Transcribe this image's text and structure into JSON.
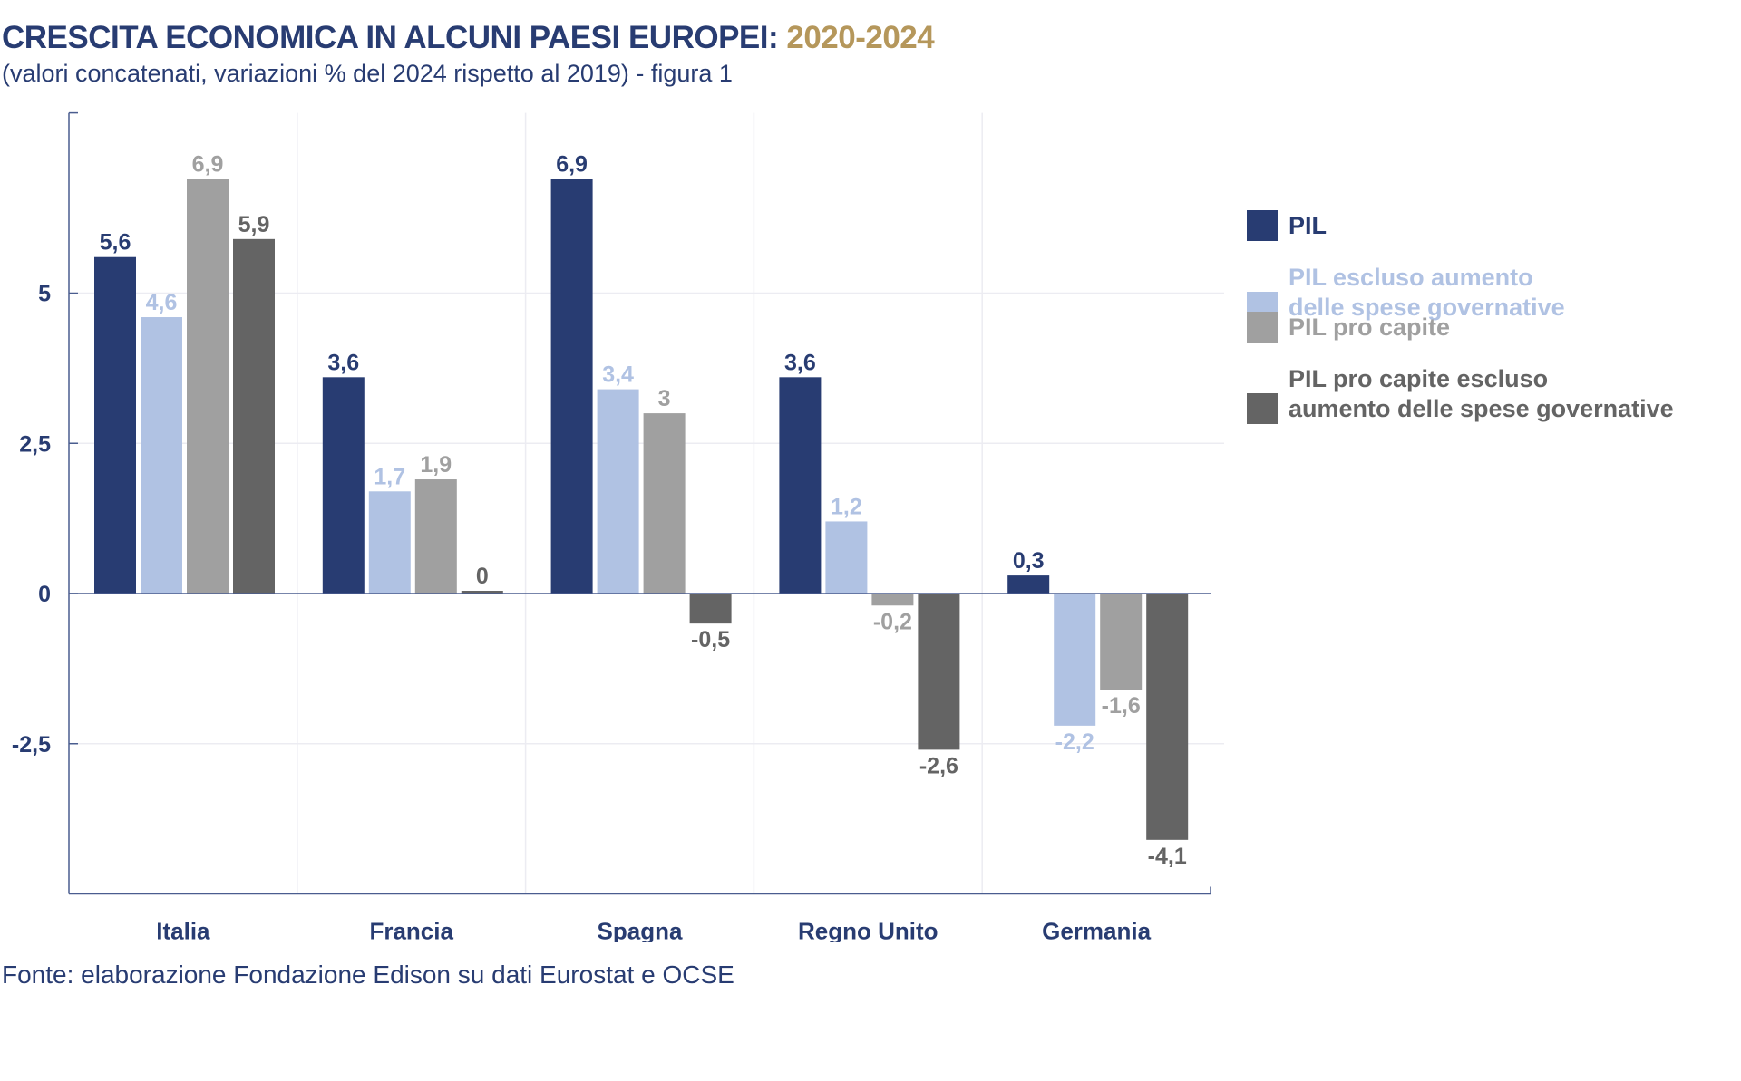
{
  "header": {
    "title_main": "CRESCITA ECONOMICA IN ALCUNI PAESI EUROPEI: ",
    "title_years": "2020-2024",
    "subtitle": "(valori concatenati, variazioni % del 2024 rispetto al 2019) - figura 1"
  },
  "source": "Fonte: elaborazione Fondazione Edison su dati Eurostat e OCSE",
  "colors": {
    "title": "#283c72",
    "years": "#b5975b",
    "axis": "#4a5d8f",
    "grid": "#ececf2"
  },
  "legend": [
    {
      "label_lines": [
        "PIL"
      ],
      "color": "#283c72"
    },
    {
      "label_lines": [
        "PIL escluso aumento",
        "delle spese governative"
      ],
      "color": "#b0c2e3"
    },
    {
      "label_lines": [
        "PIL pro capite"
      ],
      "color": "#a0a0a0"
    },
    {
      "label_lines": [
        "PIL pro capite escluso",
        "aumento delle spese governative"
      ],
      "color": "#646464"
    }
  ],
  "chart_data": {
    "type": "bar",
    "title": "CRESCITA ECONOMICA IN ALCUNI PAESI EUROPEI: 2020-2024",
    "subtitle": "(valori concatenati, variazioni % del 2024 rispetto al 2019) - figura 1",
    "xlabel": "",
    "ylabel": "",
    "categories": [
      "Italia",
      "Francia",
      "Spagna",
      "Regno Unito",
      "Germania"
    ],
    "series": [
      {
        "name": "PIL",
        "color": "#283c72",
        "values": [
          5.6,
          3.6,
          6.9,
          3.6,
          0.3
        ],
        "labels": [
          "5,6",
          "3,6",
          "6,9",
          "3,6",
          "0,3"
        ],
        "label_color": "#283c72"
      },
      {
        "name": "PIL escluso aumento delle spese governative",
        "color": "#b0c2e3",
        "values": [
          4.6,
          1.7,
          3.4,
          1.2,
          -2.2
        ],
        "labels": [
          "4,6",
          "1,7",
          "3,4",
          "1,2",
          "-2,2"
        ],
        "label_color": "#b0c2e3"
      },
      {
        "name": "PIL pro capite",
        "color": "#a0a0a0",
        "values": [
          6.9,
          1.9,
          3.0,
          -0.2,
          -1.6
        ],
        "labels": [
          "6,9",
          "1,9",
          "3",
          "-0,2",
          "-1,6"
        ],
        "label_color": "#a0a0a0"
      },
      {
        "name": "PIL pro capite escluso aumento delle spese governative",
        "color": "#646464",
        "values": [
          5.9,
          0.0,
          -0.5,
          -2.6,
          -4.1
        ],
        "labels": [
          "5,9",
          "0",
          "-0,5",
          "-2,6",
          "-4,1"
        ],
        "label_color": "#646464"
      }
    ],
    "ylim": [
      -5,
      8
    ],
    "yticks": [
      -2.5,
      0,
      2.5,
      5
    ],
    "ytick_labels": [
      "-2,5",
      "0",
      "2,5",
      "5"
    ],
    "grid": true,
    "legend_position": "right"
  }
}
